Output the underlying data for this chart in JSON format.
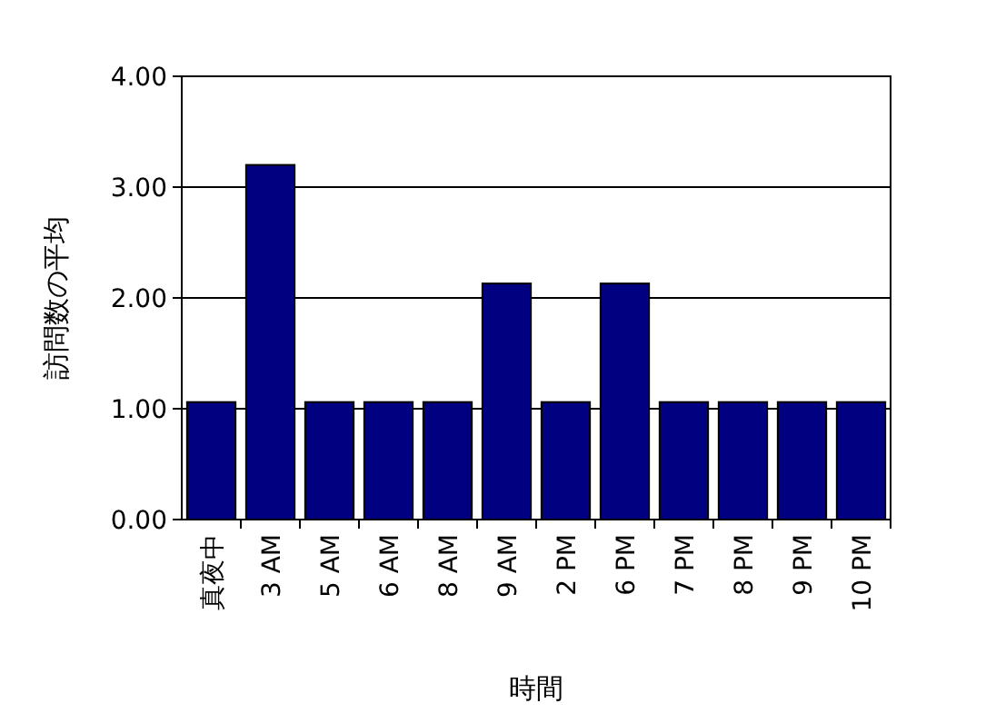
{
  "chart_data": {
    "type": "bar",
    "xlabel": "時間",
    "ylabel": "訪問数の平均",
    "categories": [
      "真夜中",
      "3 AM",
      "5 AM",
      "6 AM",
      "8 AM",
      "9 AM",
      "2 PM",
      "6 PM",
      "7 PM",
      "8 PM",
      "9 PM",
      "10 PM"
    ],
    "values": [
      1.06,
      3.2,
      1.06,
      1.06,
      1.06,
      2.13,
      1.06,
      2.13,
      1.06,
      1.06,
      1.06,
      1.06
    ],
    "color": "#000080",
    "ylim": [
      0,
      4
    ],
    "yticks": [
      {
        "value": 0,
        "label": "0.00"
      },
      {
        "value": 1,
        "label": "1.00"
      },
      {
        "value": 2,
        "label": "2.00"
      },
      {
        "value": 3,
        "label": "3.00"
      },
      {
        "value": 4,
        "label": "4.00"
      }
    ],
    "grid": "y"
  }
}
